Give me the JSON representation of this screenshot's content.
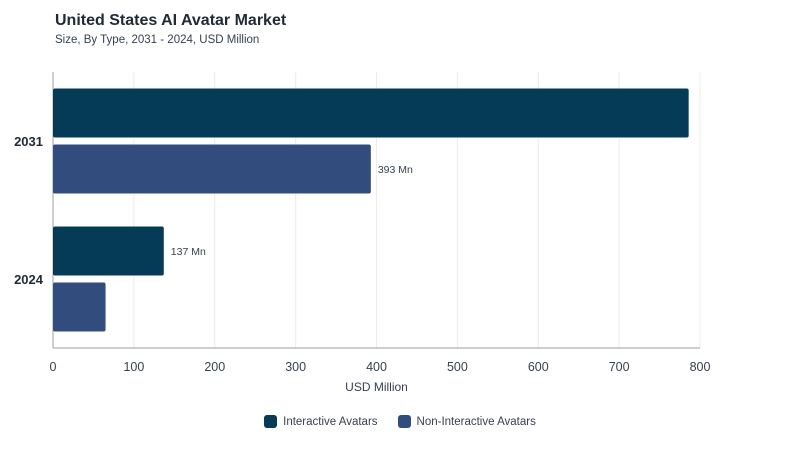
{
  "title": "United States AI Avatar Market",
  "subtitle": "Size, By Type, 2031 - 2024, USD Million",
  "colors": {
    "interactive": "#063b57",
    "non_interactive": "#324d7d",
    "grid": "#ececec",
    "axis": "#9aa0a6"
  },
  "chart_data": {
    "type": "bar",
    "orientation": "horizontal",
    "categories": [
      "2031",
      "2024"
    ],
    "series": [
      {
        "name": "Interactive Avatars",
        "values": [
          786,
          137
        ],
        "labels": [
          "",
          "137 Mn"
        ]
      },
      {
        "name": "Non-Interactive Avatars",
        "values": [
          393,
          65
        ],
        "labels": [
          "393 Mn",
          ""
        ]
      }
    ],
    "xlabel": "USD Million",
    "xlim": [
      0,
      800
    ],
    "xticks": [
      "0",
      "100",
      "200",
      "300",
      "400",
      "500",
      "600",
      "700",
      "800"
    ],
    "grid": true,
    "legend": "bottom"
  }
}
